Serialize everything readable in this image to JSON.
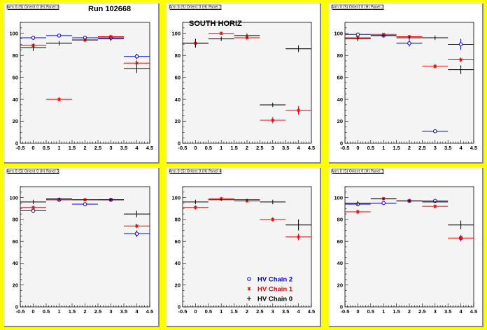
{
  "run_label": "Run 102668",
  "south_label": "SOUTH HORIZ",
  "colors": {
    "chain2": "#0000dd",
    "chain1": "#ee0000",
    "chain0": "#000000"
  },
  "legend": [
    {
      "series": "chain2",
      "label": "HV Chain 2",
      "marker": "circle"
    },
    {
      "series": "chain1",
      "label": "HV Chain 1",
      "marker": "star"
    },
    {
      "series": "chain0",
      "label": "HV Chain 0",
      "marker": "plus"
    }
  ],
  "chart_data": [
    {
      "type": "scatter",
      "title": "Arm 0 (S) Orient 0 (H) Panel 0",
      "xlim": [
        -0.5,
        4.5
      ],
      "ylim": [
        0,
        110
      ],
      "xticks": [
        "-0.5",
        "0",
        "0.5",
        "1",
        "1.5",
        "2",
        "2.5",
        "3",
        "3.5",
        "4",
        "4.5"
      ],
      "yticks": [
        "0",
        "20",
        "40",
        "60",
        "80",
        "100"
      ],
      "x": [
        0,
        1,
        2,
        3,
        4
      ],
      "series": [
        {
          "name": "HV Chain 2",
          "key": "chain2",
          "values": [
            96,
            98,
            96,
            96,
            79
          ],
          "err": [
            1,
            1,
            1,
            1,
            2.5
          ]
        },
        {
          "name": "HV Chain 1",
          "key": "chain1",
          "values": [
            89,
            40,
            94,
            97,
            73
          ],
          "err": [
            2,
            2,
            2,
            1.5,
            2.5
          ]
        },
        {
          "name": "HV Chain 0",
          "key": "chain0",
          "values": [
            87,
            91,
            94,
            95,
            68
          ],
          "err": [
            3,
            2,
            2,
            2,
            4
          ]
        }
      ]
    },
    {
      "type": "scatter",
      "title": "Arm 0 (S) Orient 0 (H) Panel 1",
      "xlim": [
        -0.5,
        4.5
      ],
      "ylim": [
        0,
        110
      ],
      "xticks": [
        "-0.5",
        "0",
        "0.5",
        "1",
        "1.5",
        "2",
        "2.5",
        "3",
        "3.5",
        "4",
        "4.5"
      ],
      "yticks": [
        "0",
        "20",
        "40",
        "60",
        "80",
        "100"
      ],
      "x": [
        0,
        1,
        2,
        3,
        4
      ],
      "series": [
        {
          "name": "HV Chain 2",
          "key": "chain2",
          "values": [
            null,
            null,
            null,
            null,
            null
          ],
          "err": [
            0,
            0,
            0,
            0,
            0
          ]
        },
        {
          "name": "HV Chain 1",
          "key": "chain1",
          "values": [
            91,
            100,
            96,
            21,
            30
          ],
          "err": [
            4,
            1,
            2,
            3,
            4
          ]
        },
        {
          "name": "HV Chain 0",
          "key": "chain0",
          "values": [
            91,
            95,
            98,
            35,
            86
          ],
          "err": [
            4,
            2,
            2,
            2,
            3
          ]
        }
      ]
    },
    {
      "type": "scatter",
      "title": "Arm 0 (S) Orient 0 (H) Panel 2",
      "xlim": [
        -0.5,
        4.5
      ],
      "ylim": [
        0,
        110
      ],
      "xticks": [
        "-0.5",
        "0",
        "0.5",
        "1",
        "1.5",
        "2",
        "2.5",
        "3",
        "3.5",
        "4",
        "4.5"
      ],
      "yticks": [
        "0",
        "20",
        "40",
        "60",
        "80",
        "100"
      ],
      "x": [
        0,
        1,
        2,
        3,
        4
      ],
      "series": [
        {
          "name": "HV Chain 2",
          "key": "chain2",
          "values": [
            99,
            98,
            91,
            11,
            90
          ],
          "err": [
            1,
            1,
            3,
            1,
            5
          ]
        },
        {
          "name": "HV Chain 1",
          "key": "chain1",
          "values": [
            96,
            99,
            97,
            70,
            76
          ],
          "err": [
            1.5,
            1,
            1.5,
            2,
            2
          ]
        },
        {
          "name": "HV Chain 0",
          "key": "chain0",
          "values": [
            95,
            98,
            96,
            96,
            67
          ],
          "err": [
            2,
            1,
            2,
            2,
            4
          ]
        }
      ]
    },
    {
      "type": "scatter",
      "title": "Arm 0 (S) Orient 0 (H) Panel 5",
      "xlim": [
        -0.5,
        4.5
      ],
      "ylim": [
        0,
        110
      ],
      "xticks": [
        "-0.5",
        "0",
        "0.5",
        "1",
        "1.5",
        "2",
        "2.5",
        "3",
        "3.5",
        "4",
        "4.5"
      ],
      "yticks": [
        "0",
        "20",
        "40",
        "60",
        "80",
        "100"
      ],
      "x": [
        0,
        1,
        2,
        3,
        4
      ],
      "series": [
        {
          "name": "HV Chain 2",
          "key": "chain2",
          "values": [
            88,
            98,
            94,
            98,
            67
          ],
          "err": [
            2,
            1,
            1,
            1,
            3
          ]
        },
        {
          "name": "HV Chain 1",
          "key": "chain1",
          "values": [
            91,
            98,
            98,
            98,
            74
          ],
          "err": [
            1.5,
            1,
            1,
            1,
            2
          ]
        },
        {
          "name": "HV Chain 0",
          "key": "chain0",
          "values": [
            96,
            99,
            98,
            98,
            85
          ],
          "err": [
            2,
            1,
            1,
            1,
            3
          ]
        }
      ]
    },
    {
      "type": "scatter",
      "title": "Arm 0 (S) Orient 0 (H) Panel 4",
      "xlim": [
        -0.5,
        4.5
      ],
      "ylim": [
        0,
        110
      ],
      "xticks": [
        "-0.5",
        "0",
        "0.5",
        "1",
        "1.5",
        "2",
        "2.5",
        "3",
        "3.5",
        "4",
        "4.5"
      ],
      "yticks": [
        "0",
        "20",
        "40",
        "60",
        "80",
        "100"
      ],
      "x": [
        0,
        1,
        2,
        3,
        4
      ],
      "series": [
        {
          "name": "HV Chain 2",
          "key": "chain2",
          "values": [
            null,
            null,
            null,
            null,
            null
          ],
          "err": [
            0,
            0,
            0,
            0,
            0
          ]
        },
        {
          "name": "HV Chain 1",
          "key": "chain1",
          "values": [
            91,
            99,
            97,
            80,
            64
          ],
          "err": [
            2,
            1,
            1,
            2,
            3
          ]
        },
        {
          "name": "HV Chain 0",
          "key": "chain0",
          "values": [
            96,
            98,
            98,
            96,
            75
          ],
          "err": [
            2,
            1,
            1,
            2,
            5
          ]
        }
      ]
    },
    {
      "type": "scatter",
      "title": "Arm 0 (S) Orient 0 (H) Panel 3",
      "xlim": [
        -0.5,
        4.5
      ],
      "ylim": [
        0,
        110
      ],
      "xticks": [
        "-0.5",
        "0",
        "0.5",
        "1",
        "1.5",
        "2",
        "2.5",
        "3",
        "3.5",
        "4",
        "4.5"
      ],
      "yticks": [
        "0",
        "20",
        "40",
        "60",
        "80",
        "100"
      ],
      "x": [
        0,
        1,
        2,
        3,
        4
      ],
      "series": [
        {
          "name": "HV Chain 2",
          "key": "chain2",
          "values": [
            94,
            95,
            97,
            97,
            63
          ],
          "err": [
            1,
            1,
            1,
            1,
            3
          ]
        },
        {
          "name": "HV Chain 1",
          "key": "chain1",
          "values": [
            87,
            99,
            97,
            92,
            63
          ],
          "err": [
            2,
            1,
            1,
            1.5,
            2
          ]
        },
        {
          "name": "HV Chain 0",
          "key": "chain0",
          "values": [
            95,
            99,
            97,
            96,
            75
          ],
          "err": [
            2,
            1,
            1,
            1,
            4
          ]
        }
      ]
    }
  ]
}
